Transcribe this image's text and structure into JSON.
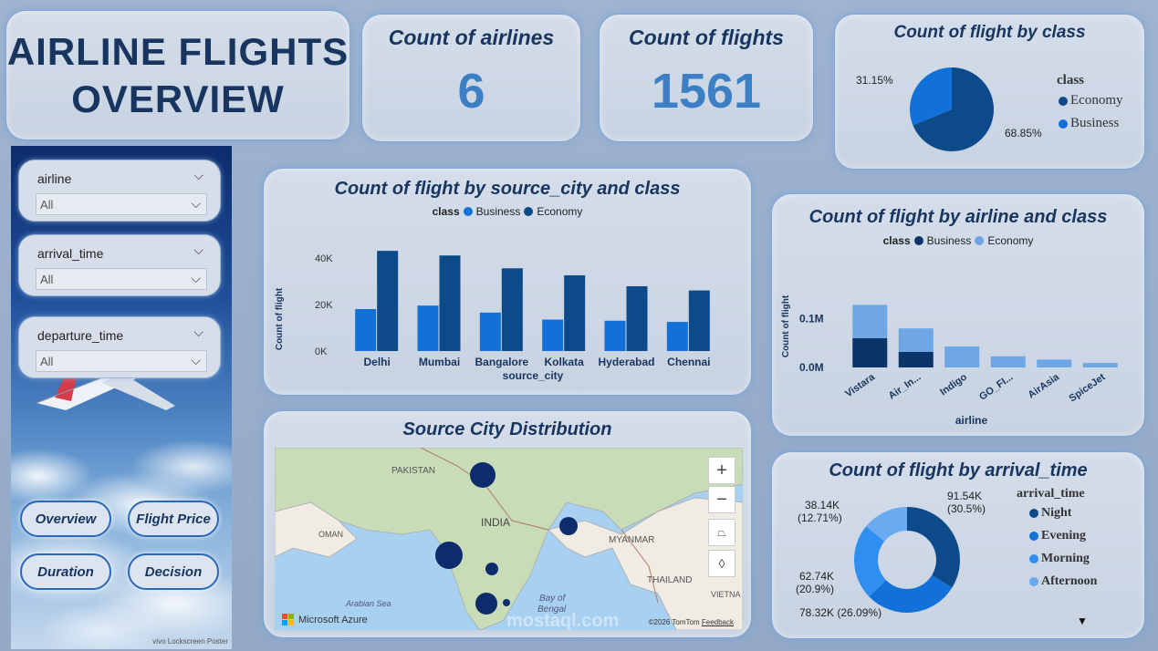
{
  "title": "AIRLINE FLIGHTS OVERVIEW",
  "title_line1": "AIRLINE FLIGHTS",
  "title_line2": "OVERVIEW",
  "kpis": {
    "airlines": {
      "label": "Count of airlines",
      "value": "6"
    },
    "flights": {
      "label": "Count of flights",
      "value": "1561"
    }
  },
  "sidebar": {
    "slicers": [
      {
        "name": "airline",
        "value": "All"
      },
      {
        "name": "arrival_time",
        "value": "All"
      },
      {
        "name": "departure_time",
        "value": "All"
      }
    ],
    "nav": {
      "overview": "Overview",
      "flight_price": "Flight Price",
      "duration": "Duration",
      "decision": "Decision"
    },
    "watermark": "vivo Lockscreen Poster"
  },
  "colors": {
    "economy_dark": "#0d4a8a",
    "business_mid": "#1271d8",
    "airline_business": "#0b3568",
    "airline_economy": "#6ea6e6",
    "donut_night": "#0d4a8a",
    "donut_evening": "#1271d8",
    "donut_morning": "#2f8ff0",
    "donut_afternoon": "#6aaaf0"
  },
  "pie_class": {
    "title": "Count of flight by class",
    "legend_title": "class",
    "labels": {
      "economy": "68.85%",
      "business": "31.15%"
    },
    "legend": {
      "economy": "Economy",
      "business": "Business"
    }
  },
  "source_city": {
    "title": "Count of flight by source_city and class",
    "legend_title": "class",
    "legend": {
      "business": "Business",
      "economy": "Economy"
    }
  },
  "airline_chart": {
    "title": "Count of flight by airline and class",
    "legend_title": "class",
    "legend": {
      "business": "Business",
      "economy": "Economy"
    }
  },
  "map": {
    "title": "Source City Distribution",
    "labels": {
      "pakistan": "PAKISTAN",
      "india": "INDIA",
      "oman": "OMAN",
      "myanmar": "MYANMAR",
      "thailand": "THAILAND",
      "arabian_sea": "Arabian Sea",
      "bay_of": "Bay of",
      "bengal": "Bengal",
      "vietnam": "VIETNA"
    },
    "attribution": "Microsoft Azure",
    "copyright": "©2026 TomTom",
    "feedback": "Feedback",
    "controls": {
      "zoom_in": "+",
      "zoom_out": "−"
    }
  },
  "arrival": {
    "title": "Count of flight by arrival_time",
    "legend_title": "arrival_time",
    "legend": [
      "Night",
      "Evening",
      "Morning",
      "Afternoon"
    ],
    "labels": {
      "night": [
        "91.54K",
        "(30.5%)"
      ],
      "evening": [
        "78.32K (26.09%)"
      ],
      "morning": [
        "62.74K",
        "(20.9%)"
      ],
      "afternoon": [
        "38.14K",
        "(12.71%)"
      ]
    }
  },
  "watermark_text": "mostaql.com",
  "chart_data": [
    {
      "type": "pie",
      "title": "Count of flight by class",
      "categories": [
        "Economy",
        "Business"
      ],
      "values": [
        68.85,
        31.15
      ],
      "legend": "right"
    },
    {
      "type": "bar",
      "title": "Count of flight by source_city and class",
      "categories": [
        "Delhi",
        "Mumbai",
        "Bangalore",
        "Kolkata",
        "Hyderabad",
        "Chennai"
      ],
      "series": [
        {
          "name": "Business",
          "values": [
            18000,
            19500,
            16500,
            13500,
            13000,
            12500
          ]
        },
        {
          "name": "Economy",
          "values": [
            43000,
            41000,
            35500,
            32500,
            27800,
            26000
          ]
        }
      ],
      "xlabel": "source_city",
      "ylabel": "Count of flight",
      "yticks": [
        "0K",
        "20K",
        "40K"
      ],
      "ylim": [
        0,
        45000
      ],
      "legend": "top"
    },
    {
      "type": "bar",
      "title": "Count of flight by airline and class",
      "categories": [
        "Vistara",
        "Air_In...",
        "Indigo",
        "GO_FI...",
        "AirAsia",
        "SpiceJet"
      ],
      "series": [
        {
          "name": "Business",
          "values": [
            60000,
            32000,
            0,
            0,
            0,
            0
          ]
        },
        {
          "name": "Economy",
          "values": [
            68000,
            48000,
            43000,
            23000,
            16000,
            9000
          ]
        }
      ],
      "stacked": true,
      "xlabel": "airline",
      "ylabel": "Count of flight",
      "yticks": [
        "0.0M",
        "0.1M"
      ],
      "ylim": [
        0,
        140000
      ],
      "legend": "top"
    },
    {
      "type": "pie",
      "donut": true,
      "title": "Count of flight by arrival_time",
      "categories": [
        "Night",
        "Evening",
        "Morning",
        "Afternoon"
      ],
      "values": [
        91540,
        78320,
        62740,
        38140
      ],
      "percents": [
        30.5,
        26.09,
        20.9,
        12.71
      ],
      "legend": "right"
    }
  ]
}
